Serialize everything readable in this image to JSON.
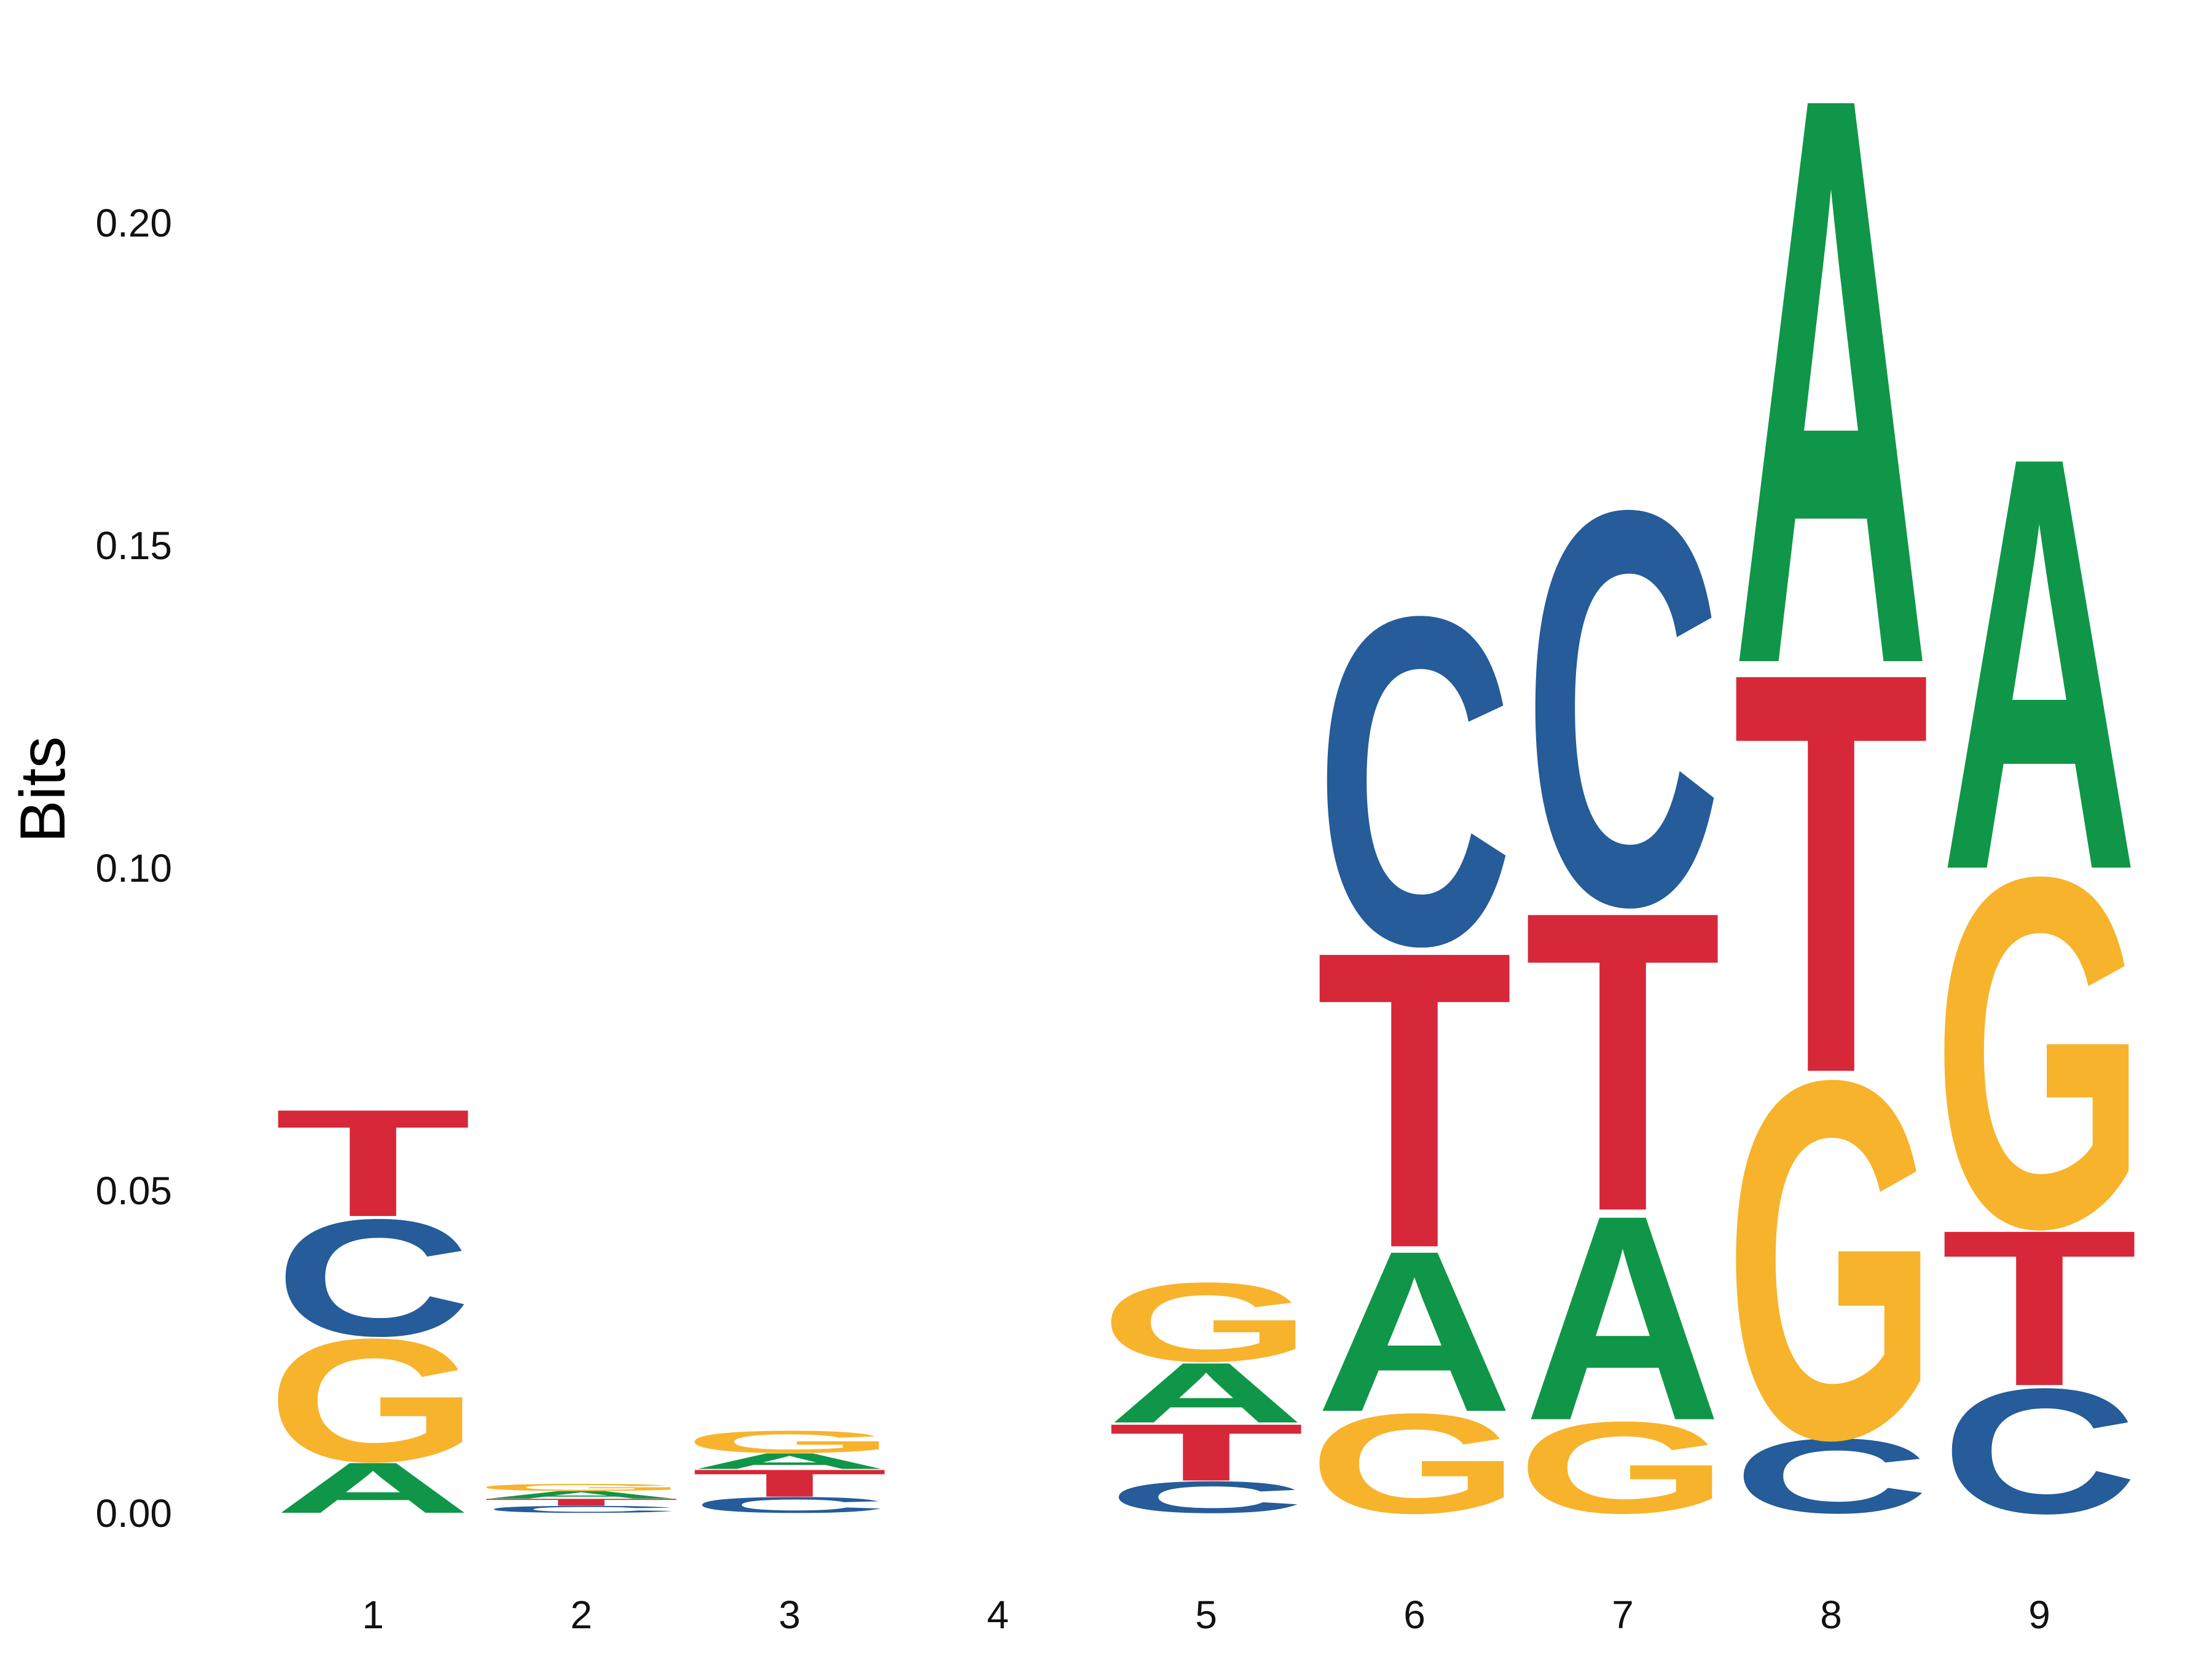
{
  "chart_data": {
    "type": "sequence-logo",
    "ylabel": "Bits",
    "ylim": [
      0,
      0.222
    ],
    "y_ticks": [
      "0.00",
      "0.05",
      "0.10",
      "0.15",
      "0.20"
    ],
    "y_tick_values": [
      0.0,
      0.05,
      0.1,
      0.15,
      0.2
    ],
    "categories": [
      "1",
      "2",
      "3",
      "4",
      "5",
      "6",
      "7",
      "8",
      "9"
    ],
    "colors": {
      "A": "#109648",
      "C": "#255c99",
      "G": "#f7b32b",
      "T": "#d62839"
    },
    "positions": [
      {
        "position": "1",
        "letters": [
          {
            "letter": "A",
            "bits": 0.008
          },
          {
            "letter": "G",
            "bits": 0.0195
          },
          {
            "letter": "C",
            "bits": 0.0185
          },
          {
            "letter": "T",
            "bits": 0.017
          }
        ]
      },
      {
        "position": "2",
        "letters": [
          {
            "letter": "C",
            "bits": 0.0011
          },
          {
            "letter": "T",
            "bits": 0.0011
          },
          {
            "letter": "A",
            "bits": 0.0012
          },
          {
            "letter": "G",
            "bits": 0.0011
          }
        ]
      },
      {
        "position": "3",
        "letters": [
          {
            "letter": "C",
            "bits": 0.0025
          },
          {
            "letter": "T",
            "bits": 0.0043
          },
          {
            "letter": "A",
            "bits": 0.0025
          },
          {
            "letter": "G",
            "bits": 0.0035
          }
        ]
      },
      {
        "position": "4",
        "letters": []
      },
      {
        "position": "5",
        "letters": [
          {
            "letter": "C",
            "bits": 0.005
          },
          {
            "letter": "T",
            "bits": 0.009
          },
          {
            "letter": "A",
            "bits": 0.0095
          },
          {
            "letter": "G",
            "bits": 0.0125
          }
        ]
      },
      {
        "position": "6",
        "letters": [
          {
            "letter": "G",
            "bits": 0.0158
          },
          {
            "letter": "A",
            "bits": 0.0255
          },
          {
            "letter": "T",
            "bits": 0.047
          },
          {
            "letter": "C",
            "bits": 0.052
          }
        ]
      },
      {
        "position": "7",
        "letters": [
          {
            "letter": "G",
            "bits": 0.0145
          },
          {
            "letter": "A",
            "bits": 0.0325
          },
          {
            "letter": "T",
            "bits": 0.0475
          },
          {
            "letter": "C",
            "bits": 0.0625
          }
        ]
      },
      {
        "position": "8",
        "letters": [
          {
            "letter": "C",
            "bits": 0.0118
          },
          {
            "letter": "G",
            "bits": 0.0567
          },
          {
            "letter": "T",
            "bits": 0.0635
          },
          {
            "letter": "A",
            "bits": 0.09
          }
        ]
      },
      {
        "position": "9",
        "letters": [
          {
            "letter": "C",
            "bits": 0.0198
          },
          {
            "letter": "T",
            "bits": 0.0247
          },
          {
            "letter": "G",
            "bits": 0.0555
          },
          {
            "letter": "A",
            "bits": 0.0655
          }
        ]
      }
    ]
  }
}
